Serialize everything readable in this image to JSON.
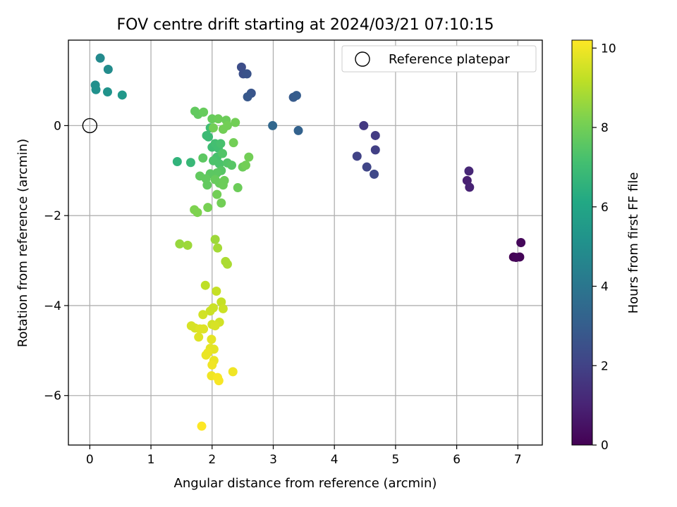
{
  "chart_data": {
    "type": "scatter",
    "title": "FOV centre drift starting at 2024/03/21 07:10:15",
    "xlabel": "Angular distance from reference (arcmin)",
    "ylabel": "Rotation from reference (arcmin)",
    "xlim": [
      -0.35,
      7.4
    ],
    "ylim": [
      -7.1,
      1.9
    ],
    "x_ticks": [
      0,
      1,
      2,
      3,
      4,
      5,
      6,
      7
    ],
    "y_ticks": [
      0,
      -2,
      -4,
      -6
    ],
    "grid": true,
    "legend": {
      "position": "top-right",
      "entries": [
        "Reference platepar"
      ]
    },
    "reference_point": {
      "x": 0,
      "y": 0
    },
    "colorbar": {
      "label": "Hours from first FF file",
      "range": [
        0,
        10.2
      ],
      "ticks": [
        0,
        2,
        4,
        6,
        8,
        10
      ],
      "colormap": "viridis"
    },
    "points": [
      {
        "x": 6.93,
        "y": -2.92,
        "h": 0.0
      },
      {
        "x": 7.03,
        "y": -2.92,
        "h": 0.1
      },
      {
        "x": 7.05,
        "y": -2.6,
        "h": 0.2
      },
      {
        "x": 6.97,
        "y": -2.93,
        "h": 0.15
      },
      {
        "x": 6.17,
        "y": -1.22,
        "h": 0.9
      },
      {
        "x": 6.21,
        "y": -1.37,
        "h": 1.0
      },
      {
        "x": 6.2,
        "y": -1.01,
        "h": 1.1
      },
      {
        "x": 4.48,
        "y": 0.0,
        "h": 1.7
      },
      {
        "x": 4.67,
        "y": -0.22,
        "h": 1.8
      },
      {
        "x": 4.67,
        "y": -0.54,
        "h": 1.9
      },
      {
        "x": 4.37,
        "y": -0.68,
        "h": 2.0
      },
      {
        "x": 4.53,
        "y": -0.92,
        "h": 2.1
      },
      {
        "x": 4.65,
        "y": -1.08,
        "h": 2.2
      },
      {
        "x": 2.48,
        "y": 1.3,
        "h": 2.4
      },
      {
        "x": 2.51,
        "y": 1.15,
        "h": 2.5
      },
      {
        "x": 2.57,
        "y": 1.15,
        "h": 2.6
      },
      {
        "x": 2.64,
        "y": 0.72,
        "h": 2.7
      },
      {
        "x": 2.58,
        "y": 0.64,
        "h": 2.8
      },
      {
        "x": 3.33,
        "y": 0.63,
        "h": 2.9
      },
      {
        "x": 3.38,
        "y": 0.67,
        "h": 3.0
      },
      {
        "x": 3.41,
        "y": -0.11,
        "h": 3.2
      },
      {
        "x": 2.99,
        "y": 0.0,
        "h": 3.4
      },
      {
        "x": 0.17,
        "y": 1.5,
        "h": 4.8
      },
      {
        "x": 0.3,
        "y": 1.25,
        "h": 4.9
      },
      {
        "x": 0.09,
        "y": 0.9,
        "h": 5.0
      },
      {
        "x": 0.1,
        "y": 0.8,
        "h": 5.1
      },
      {
        "x": 0.29,
        "y": 0.75,
        "h": 5.2
      },
      {
        "x": 0.53,
        "y": 0.68,
        "h": 5.4
      },
      {
        "x": 1.43,
        "y": -0.8,
        "h": 6.6
      },
      {
        "x": 1.65,
        "y": -0.82,
        "h": 6.8
      },
      {
        "x": 1.91,
        "y": -0.22,
        "h": 6.9
      },
      {
        "x": 1.94,
        "y": -0.25,
        "h": 6.9
      },
      {
        "x": 1.97,
        "y": -0.05,
        "h": 7.0
      },
      {
        "x": 2.0,
        "y": -0.48,
        "h": 7.0
      },
      {
        "x": 2.05,
        "y": -0.4,
        "h": 7.1
      },
      {
        "x": 2.1,
        "y": -0.5,
        "h": 7.1
      },
      {
        "x": 2.14,
        "y": -0.4,
        "h": 7.2
      },
      {
        "x": 2.08,
        "y": -0.7,
        "h": 7.2
      },
      {
        "x": 2.02,
        "y": -0.78,
        "h": 7.3
      },
      {
        "x": 2.12,
        "y": -0.85,
        "h": 7.3
      },
      {
        "x": 2.17,
        "y": -0.62,
        "h": 7.4
      },
      {
        "x": 2.25,
        "y": -0.83,
        "h": 7.4
      },
      {
        "x": 2.32,
        "y": -0.88,
        "h": 7.5
      },
      {
        "x": 2.15,
        "y": -1.0,
        "h": 7.5
      },
      {
        "x": 2.08,
        "y": -1.05,
        "h": 7.6
      },
      {
        "x": 1.97,
        "y": -1.07,
        "h": 7.6
      },
      {
        "x": 1.9,
        "y": -1.18,
        "h": 7.7
      },
      {
        "x": 1.8,
        "y": -1.12,
        "h": 7.7
      },
      {
        "x": 1.85,
        "y": -0.72,
        "h": 7.6
      },
      {
        "x": 1.92,
        "y": -1.32,
        "h": 7.7
      },
      {
        "x": 2.05,
        "y": -1.2,
        "h": 7.8
      },
      {
        "x": 2.12,
        "y": -1.28,
        "h": 7.8
      },
      {
        "x": 2.18,
        "y": -1.32,
        "h": 7.9
      },
      {
        "x": 2.2,
        "y": -1.22,
        "h": 7.9
      },
      {
        "x": 2.42,
        "y": -1.38,
        "h": 7.9
      },
      {
        "x": 2.5,
        "y": -0.92,
        "h": 7.9
      },
      {
        "x": 2.55,
        "y": -0.88,
        "h": 8.0
      },
      {
        "x": 2.6,
        "y": -0.7,
        "h": 8.0
      },
      {
        "x": 2.35,
        "y": -0.38,
        "h": 8.0
      },
      {
        "x": 2.08,
        "y": -1.53,
        "h": 8.0
      },
      {
        "x": 2.15,
        "y": -1.72,
        "h": 8.0
      },
      {
        "x": 1.93,
        "y": -1.82,
        "h": 8.1
      },
      {
        "x": 1.71,
        "y": -1.87,
        "h": 8.2
      },
      {
        "x": 1.76,
        "y": -1.93,
        "h": 8.2
      },
      {
        "x": 1.72,
        "y": 0.32,
        "h": 7.7
      },
      {
        "x": 1.77,
        "y": 0.25,
        "h": 7.7
      },
      {
        "x": 1.86,
        "y": 0.3,
        "h": 7.8
      },
      {
        "x": 2.0,
        "y": 0.15,
        "h": 7.8
      },
      {
        "x": 2.1,
        "y": 0.15,
        "h": 7.9
      },
      {
        "x": 2.23,
        "y": 0.12,
        "h": 7.9
      },
      {
        "x": 2.38,
        "y": 0.07,
        "h": 8.0
      },
      {
        "x": 2.25,
        "y": 0.0,
        "h": 8.0
      },
      {
        "x": 2.18,
        "y": -0.08,
        "h": 8.0
      },
      {
        "x": 2.02,
        "y": -0.05,
        "h": 8.0
      },
      {
        "x": 1.47,
        "y": -2.63,
        "h": 8.6
      },
      {
        "x": 1.6,
        "y": -2.66,
        "h": 8.7
      },
      {
        "x": 2.05,
        "y": -2.53,
        "h": 8.7
      },
      {
        "x": 2.09,
        "y": -2.72,
        "h": 8.8
      },
      {
        "x": 2.22,
        "y": -3.02,
        "h": 8.9
      },
      {
        "x": 2.25,
        "y": -3.08,
        "h": 8.9
      },
      {
        "x": 1.89,
        "y": -3.55,
        "h": 9.2
      },
      {
        "x": 2.07,
        "y": -3.68,
        "h": 9.3
      },
      {
        "x": 2.15,
        "y": -3.92,
        "h": 9.3
      },
      {
        "x": 2.18,
        "y": -4.07,
        "h": 9.4
      },
      {
        "x": 2.02,
        "y": -4.05,
        "h": 9.4
      },
      {
        "x": 1.97,
        "y": -4.12,
        "h": 9.4
      },
      {
        "x": 1.85,
        "y": -4.2,
        "h": 9.5
      },
      {
        "x": 2.12,
        "y": -4.37,
        "h": 9.5
      },
      {
        "x": 2.0,
        "y": -4.42,
        "h": 9.5
      },
      {
        "x": 2.05,
        "y": -4.45,
        "h": 9.6
      },
      {
        "x": 1.66,
        "y": -4.45,
        "h": 9.6
      },
      {
        "x": 1.72,
        "y": -4.5,
        "h": 9.6
      },
      {
        "x": 1.8,
        "y": -4.52,
        "h": 9.7
      },
      {
        "x": 1.86,
        "y": -4.52,
        "h": 9.7
      },
      {
        "x": 1.78,
        "y": -4.7,
        "h": 9.7
      },
      {
        "x": 1.99,
        "y": -4.75,
        "h": 9.8
      },
      {
        "x": 1.97,
        "y": -4.95,
        "h": 9.8
      },
      {
        "x": 2.03,
        "y": -4.97,
        "h": 9.8
      },
      {
        "x": 1.93,
        "y": -5.05,
        "h": 9.9
      },
      {
        "x": 1.9,
        "y": -5.1,
        "h": 9.9
      },
      {
        "x": 2.03,
        "y": -5.22,
        "h": 9.9
      },
      {
        "x": 2.0,
        "y": -5.32,
        "h": 10.0
      },
      {
        "x": 2.34,
        "y": -5.47,
        "h": 10.0
      },
      {
        "x": 1.99,
        "y": -5.56,
        "h": 10.0
      },
      {
        "x": 2.09,
        "y": -5.6,
        "h": 10.1
      },
      {
        "x": 2.11,
        "y": -5.67,
        "h": 10.1
      },
      {
        "x": 1.83,
        "y": -6.68,
        "h": 10.2
      }
    ]
  }
}
